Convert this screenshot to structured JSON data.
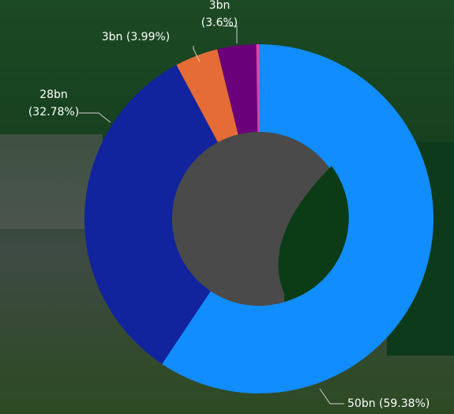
{
  "chart_data": {
    "type": "donut",
    "values": [
      59.38,
      32.78,
      3.99,
      3.6,
      0.25
    ],
    "value_labels": [
      [
        "50bn (59.38%)"
      ],
      [
        "28bn",
        "(32.78%)"
      ],
      [
        "3bn (3.99%)"
      ],
      [
        "3bn",
        "(3.6%)"
      ],
      null
    ],
    "colors": [
      "#118dff",
      "#12239e",
      "#e66c37",
      "#6b007b",
      "#e044a7"
    ]
  }
}
